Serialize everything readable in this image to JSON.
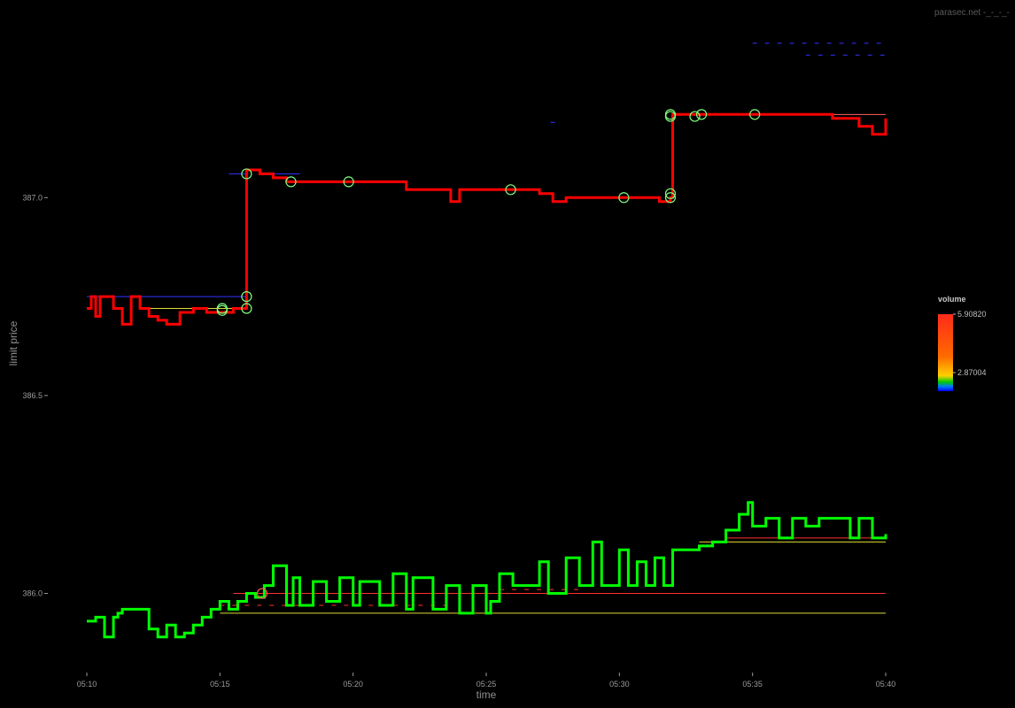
{
  "watermark": "parasec.net -_-_-_-",
  "chart_data": {
    "type": "line",
    "title": "",
    "xlabel": "time",
    "ylabel": "limit price",
    "xlim": [
      "05:10",
      "05:40"
    ],
    "ylim": [
      385.8,
      387.45
    ],
    "x_ticks": [
      "05:10",
      "05:15",
      "05:20",
      "05:25",
      "05:30",
      "05:35",
      "05:40"
    ],
    "y_ticks": [
      386.0,
      386.5,
      387.0
    ],
    "y_tick_labels": [
      "386.0",
      "386.5",
      "387.0"
    ],
    "grid": false,
    "background": "#000000",
    "series": [
      {
        "role": "ask",
        "color": "#ff0000",
        "x": [
          "05:10:00",
          "05:10:10",
          "05:10:20",
          "05:10:30",
          "05:11:00",
          "05:11:20",
          "05:11:40",
          "05:12:00",
          "05:12:20",
          "05:12:40",
          "05:13:00",
          "05:13:30",
          "05:14:00",
          "05:14:30",
          "05:15:00",
          "05:15:30",
          "05:15:55",
          "05:16:00",
          "05:16:30",
          "05:17:00",
          "05:17:30",
          "05:18:00",
          "05:19:00",
          "05:20:00",
          "05:21:00",
          "05:22:00",
          "05:23:00",
          "05:23:40",
          "05:24:00",
          "05:25:00",
          "05:26:00",
          "05:27:00",
          "05:27:30",
          "05:28:00",
          "05:29:00",
          "05:30:00",
          "05:31:00",
          "05:31:30",
          "05:31:55",
          "05:32:00",
          "05:32:30",
          "05:33:00",
          "05:34:00",
          "05:35:00",
          "05:36:00",
          "05:37:00",
          "05:38:00",
          "05:39:00",
          "05:39:30",
          "05:40:00"
        ],
        "y": [
          386.72,
          386.75,
          386.7,
          386.75,
          386.72,
          386.68,
          386.75,
          386.72,
          386.7,
          386.69,
          386.68,
          386.71,
          386.72,
          386.71,
          386.71,
          386.72,
          386.72,
          387.07,
          387.06,
          387.05,
          387.04,
          387.04,
          387.04,
          387.04,
          387.04,
          387.02,
          387.02,
          386.99,
          387.02,
          387.02,
          387.02,
          387.01,
          386.99,
          387.0,
          387.0,
          387.0,
          387.0,
          386.99,
          387.0,
          387.21,
          387.21,
          387.21,
          387.21,
          387.21,
          387.21,
          387.21,
          387.2,
          387.18,
          387.16,
          387.2
        ]
      },
      {
        "role": "bid",
        "color": "#00ff00",
        "x": [
          "05:10:00",
          "05:10:20",
          "05:10:40",
          "05:11:00",
          "05:11:10",
          "05:11:20",
          "05:11:30",
          "05:12:00",
          "05:12:20",
          "05:12:40",
          "05:13:00",
          "05:13:20",
          "05:13:40",
          "05:14:00",
          "05:14:20",
          "05:14:40",
          "05:15:00",
          "05:15:20",
          "05:15:40",
          "05:16:00",
          "05:16:20",
          "05:16:40",
          "05:17:00",
          "05:17:30",
          "05:17:45",
          "05:18:00",
          "05:18:30",
          "05:19:00",
          "05:19:30",
          "05:20:00",
          "05:20:15",
          "05:21:00",
          "05:21:30",
          "05:22:00",
          "05:22:15",
          "05:23:00",
          "05:23:30",
          "05:24:00",
          "05:24:30",
          "05:25:00",
          "05:25:10",
          "05:25:30",
          "05:26:00",
          "05:27:00",
          "05:27:20",
          "05:28:00",
          "05:28:30",
          "05:29:00",
          "05:29:20",
          "05:30:00",
          "05:30:20",
          "05:30:40",
          "05:31:00",
          "05:31:20",
          "05:31:40",
          "05:32:00",
          "05:32:30",
          "05:33:00",
          "05:33:30",
          "05:34:00",
          "05:34:30",
          "05:34:50",
          "05:35:00",
          "05:35:30",
          "05:36:00",
          "05:36:30",
          "05:37:00",
          "05:37:30",
          "05:38:00",
          "05:38:20",
          "05:38:40",
          "05:39:00",
          "05:39:30",
          "05:40:00"
        ],
        "y": [
          385.93,
          385.94,
          385.89,
          385.94,
          385.95,
          385.96,
          385.96,
          385.96,
          385.91,
          385.89,
          385.92,
          385.89,
          385.9,
          385.92,
          385.94,
          385.96,
          385.98,
          385.96,
          385.98,
          386.0,
          385.99,
          386.02,
          386.07,
          385.97,
          386.04,
          385.97,
          386.03,
          385.98,
          386.04,
          385.97,
          386.03,
          385.97,
          386.05,
          385.96,
          386.04,
          385.96,
          386.02,
          385.95,
          386.02,
          385.95,
          385.98,
          386.05,
          386.02,
          386.08,
          386.0,
          386.09,
          386.02,
          386.13,
          386.02,
          386.11,
          386.02,
          386.08,
          386.02,
          386.09,
          386.02,
          386.11,
          386.11,
          386.12,
          386.13,
          386.16,
          386.2,
          386.23,
          386.17,
          386.19,
          386.14,
          386.19,
          386.17,
          386.19,
          386.19,
          386.19,
          386.14,
          386.19,
          386.14,
          386.15
        ]
      }
    ],
    "trade_markers": [
      {
        "time": "05:15:05",
        "price": 386.72,
        "color": "#7fff7f"
      },
      {
        "time": "05:15:05",
        "price": 386.715,
        "color": "#7fff7f"
      },
      {
        "time": "05:16:00",
        "price": 386.75,
        "color": "#7fff7f"
      },
      {
        "time": "05:16:00",
        "price": 386.72,
        "color": "#7fff7f"
      },
      {
        "time": "05:16:00",
        "price": 387.06,
        "color": "#7fff7f"
      },
      {
        "time": "05:17:40",
        "price": 387.04,
        "color": "#7fff7f"
      },
      {
        "time": "05:19:50",
        "price": 387.04,
        "color": "#7fff7f"
      },
      {
        "time": "05:25:55",
        "price": 387.02,
        "color": "#7fff7f"
      },
      {
        "time": "05:30:10",
        "price": 387.0,
        "color": "#7fff7f"
      },
      {
        "time": "05:31:55",
        "price": 387.01,
        "color": "#7fff7f"
      },
      {
        "time": "05:31:55",
        "price": 387.0,
        "color": "#7fff7f"
      },
      {
        "time": "05:31:55",
        "price": 387.21,
        "color": "#7fff7f"
      },
      {
        "time": "05:31:55",
        "price": 387.205,
        "color": "#7fff7f"
      },
      {
        "time": "05:32:50",
        "price": 387.205,
        "color": "#7fff7f"
      },
      {
        "time": "05:33:05",
        "price": 387.21,
        "color": "#7fff7f"
      },
      {
        "time": "05:35:05",
        "price": 387.21,
        "color": "#7fff7f"
      },
      {
        "time": "05:16:35",
        "price": 386.0,
        "color": "#ff6060"
      }
    ],
    "order_levels": [
      {
        "price": 386.75,
        "start": "05:10:00",
        "end": "05:16:00",
        "color": "#3333ff"
      },
      {
        "price": 386.72,
        "start": "05:12:00",
        "end": "05:16:00",
        "color": "#dddd33"
      },
      {
        "price": 387.06,
        "start": "05:15:20",
        "end": "05:16:00",
        "color": "#3333ff"
      },
      {
        "price": 387.06,
        "start": "05:16:30",
        "end": "05:18:00",
        "color": "#3333ff"
      },
      {
        "price": 387.21,
        "start": "05:36:00",
        "end": "05:40:00",
        "color": "#ff6060"
      },
      {
        "price": 386.14,
        "start": "05:34:00",
        "end": "05:40:00",
        "color": "#ff3030"
      },
      {
        "price": 386.13,
        "start": "05:33:00",
        "end": "05:40:00",
        "color": "#dddd33"
      },
      {
        "price": 386.0,
        "start": "05:15:30",
        "end": "05:40:00",
        "color": "#ff3030"
      },
      {
        "price": 385.95,
        "start": "05:15:00",
        "end": "05:40:00",
        "color": "#dddd33"
      },
      {
        "price": 385.97,
        "start": "05:15:00",
        "end": "05:23:30",
        "color": "#ff3030",
        "dashed": true
      },
      {
        "price": 386.01,
        "start": "05:25:30",
        "end": "05:28:30",
        "color": "#ff3030",
        "dashed": true
      },
      {
        "price": 387.39,
        "start": "05:35:00",
        "end": "05:40:00",
        "color": "#3333ff",
        "dashed": true
      },
      {
        "price": 387.36,
        "start": "05:37:00",
        "end": "05:40:00",
        "color": "#3333ff",
        "dashed": true
      },
      {
        "price": 387.19,
        "start": "05:27:25",
        "end": "05:27:35",
        "color": "#3333ff"
      }
    ],
    "legend": {
      "title": "volume",
      "position": "right",
      "labels": [
        "5.90820",
        "2.87004"
      ],
      "colors": [
        "#ff2a1a",
        "#ff6a00",
        "#ffd000",
        "#00cc00",
        "#0077ff",
        "#0000ff"
      ]
    }
  }
}
